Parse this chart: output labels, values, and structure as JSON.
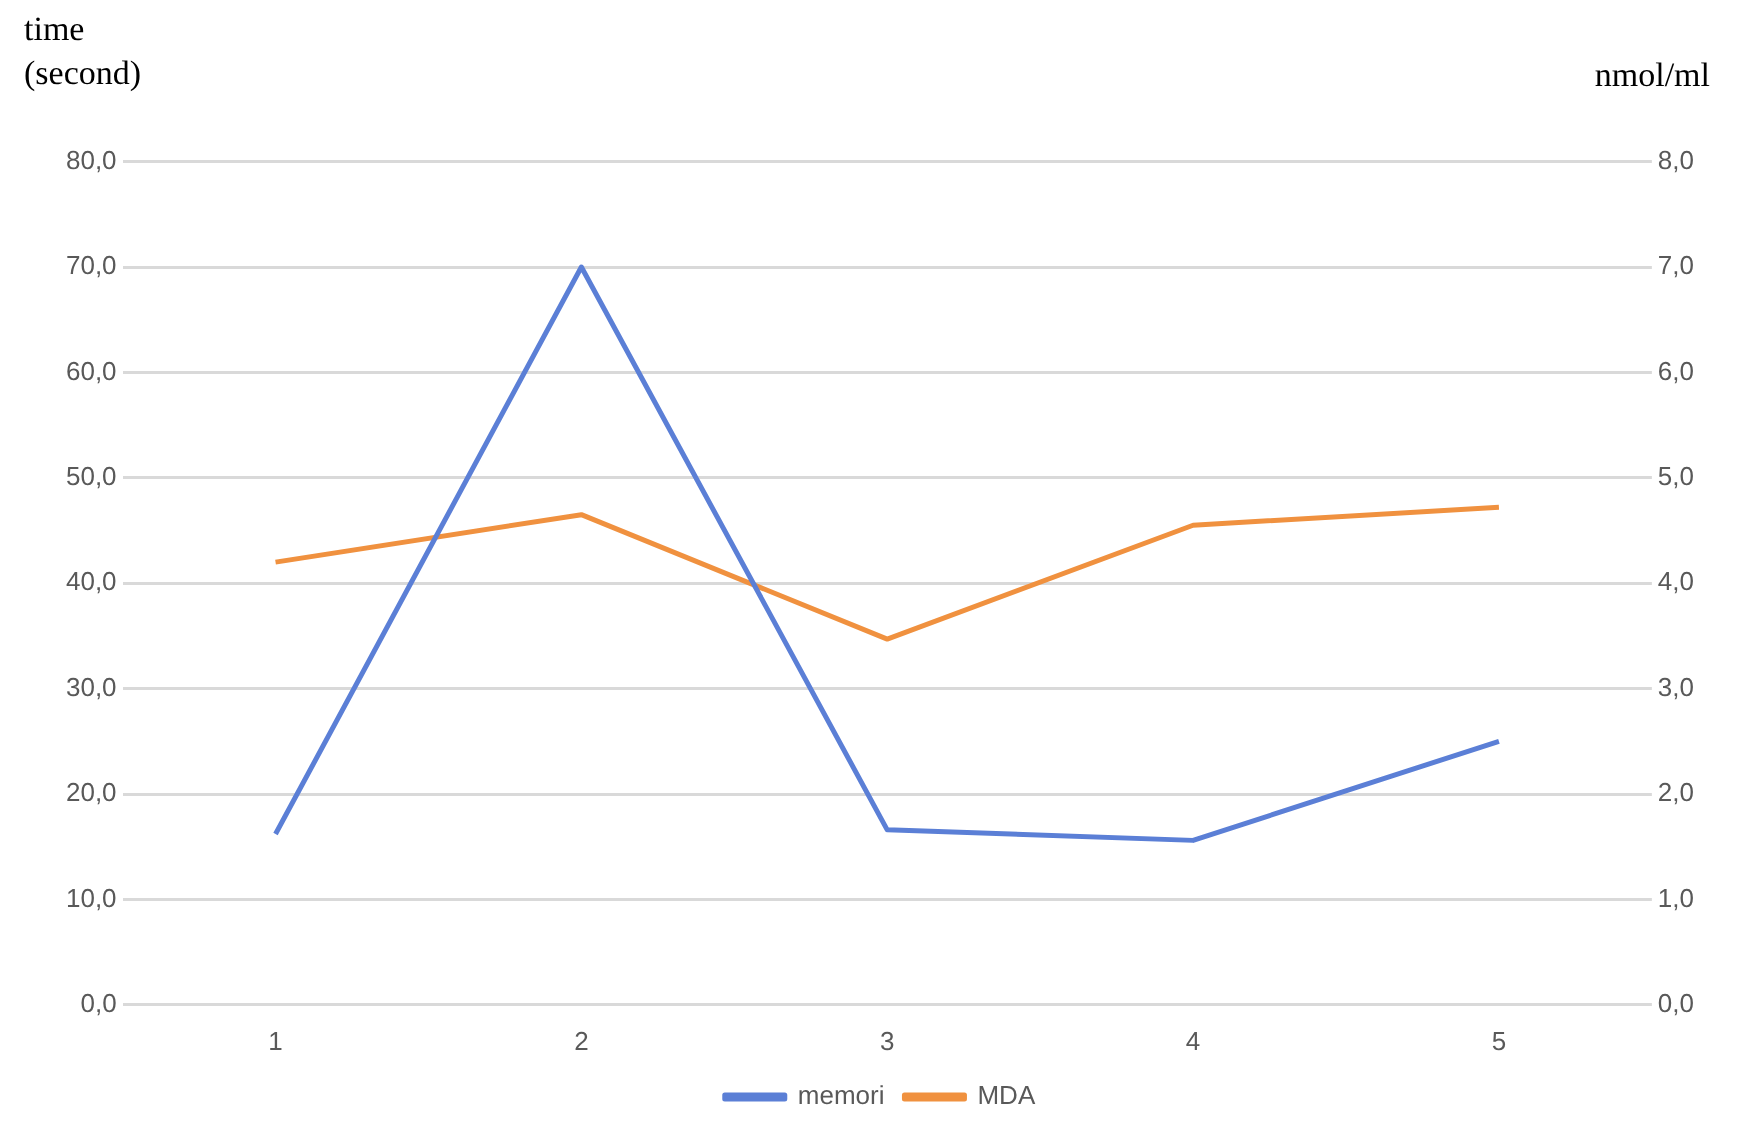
{
  "chart_data": {
    "type": "line",
    "ylabel": "time (second)",
    "y2label": "nmol/ml",
    "categories": [
      "1",
      "2",
      "3",
      "4",
      "5"
    ],
    "series": [
      {
        "name": "memori",
        "color": "#5b7fd6",
        "values": [
          16.2,
          70,
          16.6,
          15.6,
          25
        ]
      },
      {
        "name": "MDA",
        "color": "#f0913f",
        "values": [
          4.2,
          4.65,
          3.47,
          4.55,
          4.72
        ],
        "axis": "y2"
      }
    ],
    "ylim": [
      0,
      80
    ],
    "yticks": [
      {
        "value": 0,
        "label": "0,0"
      },
      {
        "value": 10,
        "label": "10,0"
      },
      {
        "value": 20,
        "label": "20,0"
      },
      {
        "value": 30,
        "label": "30,0"
      },
      {
        "value": 40,
        "label": "40,0"
      },
      {
        "value": 50,
        "label": "50,0"
      },
      {
        "value": 60,
        "label": "60,0"
      },
      {
        "value": 70,
        "label": "70,0"
      },
      {
        "value": 80,
        "label": "80,0"
      }
    ],
    "y2lim": [
      0,
      8
    ],
    "y2ticks": [
      {
        "value": 0,
        "label": "0,0"
      },
      {
        "value": 1,
        "label": "1,0"
      },
      {
        "value": 2,
        "label": "2,0"
      },
      {
        "value": 3,
        "label": "3,0"
      },
      {
        "value": 4,
        "label": "4,0"
      },
      {
        "value": 5,
        "label": "5,0"
      },
      {
        "value": 6,
        "label": "6,0"
      },
      {
        "value": 7,
        "label": "7,0"
      },
      {
        "value": 8,
        "label": "8,0"
      }
    ],
    "grid": "y",
    "legend": "bottom",
    "marker": "none",
    "line_style": "solid"
  }
}
